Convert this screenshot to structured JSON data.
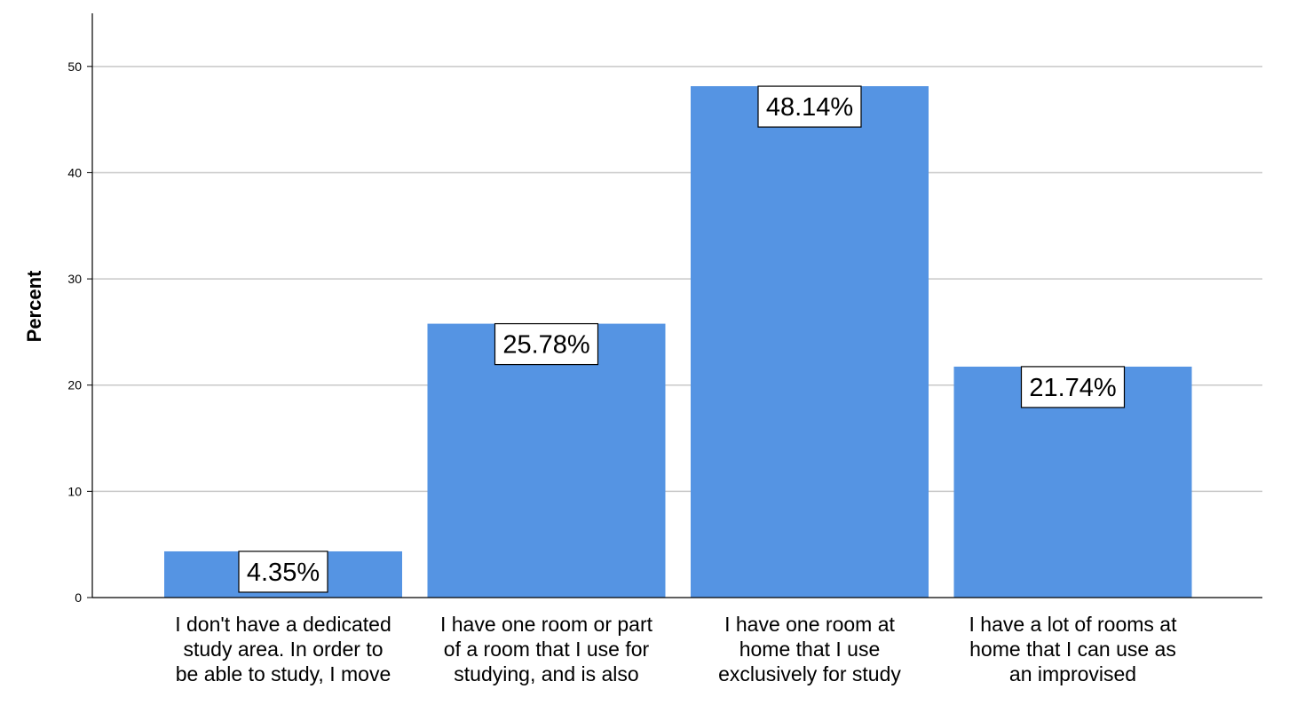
{
  "chart_data": {
    "type": "bar",
    "categories": [
      [
        "I don't have a dedicated",
        "study area. In order to",
        "be able to study, I move"
      ],
      [
        "I have one room or part",
        "of a room that I use for",
        "studying, and is also"
      ],
      [
        "I have one room at",
        "home that I use",
        "exclusively for study"
      ],
      [
        "I have a lot of rooms at",
        "home that I can use as",
        "an improvised"
      ]
    ],
    "values": [
      4.35,
      25.78,
      48.14,
      21.74
    ],
    "value_labels": [
      "4.35%",
      "25.78%",
      "48.14%",
      "21.74%"
    ],
    "title": "",
    "xlabel": "",
    "ylabel": "Percent",
    "ylim": [
      0,
      55
    ],
    "yticks": [
      0,
      10,
      20,
      30,
      40,
      50
    ],
    "grid": true,
    "legend": "none",
    "colors": {
      "bar": "#5594e3",
      "grid": "#c8c8c8",
      "axis": "#000000",
      "label_box_bg": "#ffffff",
      "label_box_border": "#000000"
    }
  }
}
